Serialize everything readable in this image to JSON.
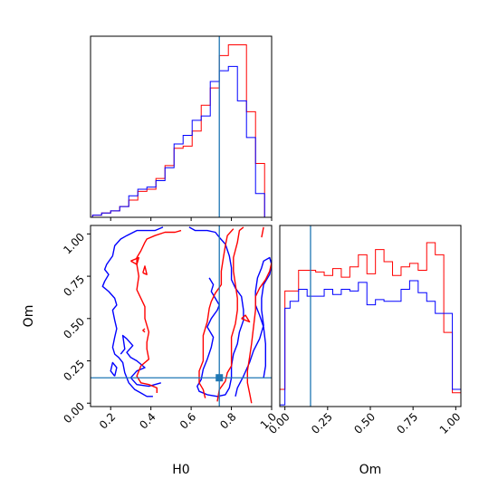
{
  "chart_data": {
    "type": "corner",
    "parameters": [
      "H0",
      "Om"
    ],
    "truths": {
      "H0": 0.74,
      "Om": 0.15
    },
    "colors": {
      "red": "#ff0000",
      "blue": "#0000ff",
      "truth": "#1f77b4"
    },
    "panels": [
      {
        "id": "hist_H0",
        "type": "histogram",
        "xlim": [
          0.1,
          1.0
        ],
        "bins": [
          0.11,
          0.155,
          0.2,
          0.245,
          0.29,
          0.335,
          0.38,
          0.425,
          0.47,
          0.515,
          0.56,
          0.605,
          0.65,
          0.695,
          0.74,
          0.785,
          0.83,
          0.875,
          0.92,
          0.965,
          1.0
        ],
        "series": [
          {
            "name": "",
            "color": "#ff0000",
            "values": [
              1,
              2,
              3,
              5,
              8,
              12,
              13,
              18,
              24,
              32,
              33,
              40,
              52,
              60,
              75,
              80,
              80,
              49,
              25,
              0
            ]
          },
          {
            "name": "",
            "color": "#0000ff",
            "values": [
              1,
              2,
              3,
              5,
              10,
              13,
              14,
              17,
              23,
              34,
              38,
              45,
              47,
              63,
              68,
              70,
              54,
              37,
              11,
              0
            ]
          }
        ]
      },
      {
        "id": "contour_H0_Om",
        "type": "contour",
        "xlabel": "H0",
        "ylabel": "Om",
        "xlim": [
          0.1,
          1.0
        ],
        "ylim": [
          -0.02,
          1.05
        ],
        "xticks": [
          "0.2",
          "0.4",
          "0.6",
          "0.8",
          "1.0"
        ],
        "xtick_values": [
          0.2,
          0.4,
          0.6,
          0.8,
          1.0
        ],
        "yticks": [
          "0.00",
          "0.25",
          "0.50",
          "0.75",
          "1.00"
        ],
        "ytick_values": [
          0.0,
          0.25,
          0.5,
          0.75,
          1.0
        ]
      },
      {
        "id": "hist_Om",
        "type": "histogram",
        "xlabel": "Om",
        "xlim": [
          -0.03,
          1.03
        ],
        "xticks": [
          "0.00",
          "0.25",
          "0.50",
          "0.75",
          "1.00"
        ],
        "xtick_values": [
          0.0,
          0.25,
          0.5,
          0.75,
          1.0
        ],
        "bins": [
          -0.03,
          0.0,
          0.03,
          0.08,
          0.13,
          0.18,
          0.23,
          0.28,
          0.33,
          0.38,
          0.43,
          0.48,
          0.53,
          0.58,
          0.63,
          0.68,
          0.73,
          0.78,
          0.83,
          0.88,
          0.93,
          0.98,
          1.03
        ],
        "series": [
          {
            "name": "",
            "color": "#ff0000",
            "values": [
              0.1,
              0.67,
              0.67,
              0.79,
              0.79,
              0.78,
              0.76,
              0.8,
              0.75,
              0.81,
              0.88,
              0.77,
              0.91,
              0.84,
              0.76,
              0.81,
              0.83,
              0.79,
              0.95,
              0.88,
              0.43,
              0.08
            ]
          },
          {
            "name": "",
            "color": "#0000ff",
            "values": [
              0.01,
              0.57,
              0.61,
              0.68,
              0.64,
              0.64,
              0.68,
              0.65,
              0.68,
              0.67,
              0.72,
              0.59,
              0.62,
              0.61,
              0.61,
              0.68,
              0.73,
              0.66,
              0.61,
              0.54,
              0.54,
              0.1
            ]
          }
        ]
      }
    ]
  }
}
